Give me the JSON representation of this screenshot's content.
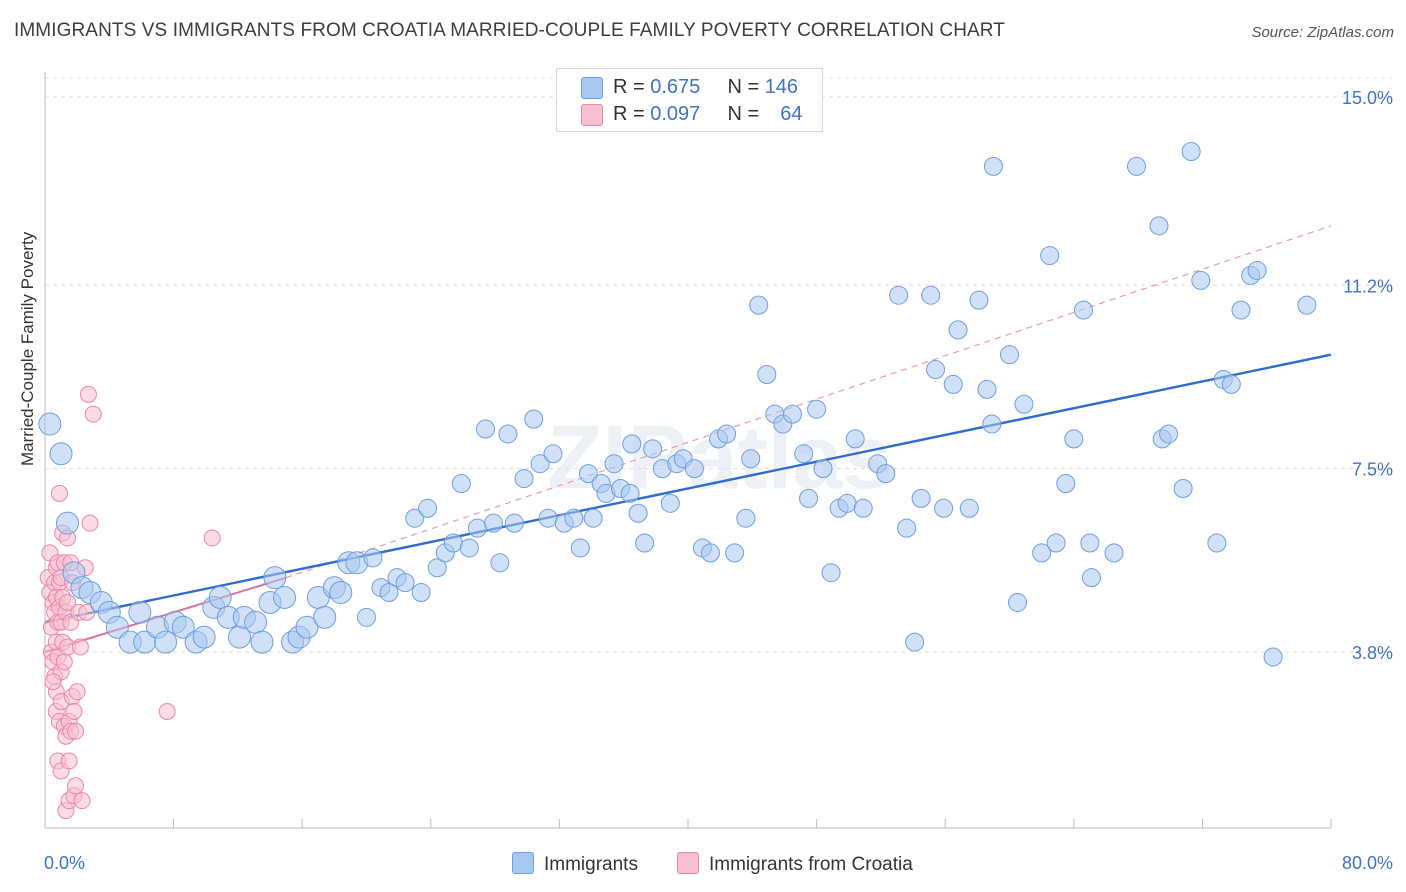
{
  "title": "IMMIGRANTS VS IMMIGRANTS FROM CROATIA MARRIED-COUPLE FAMILY POVERTY CORRELATION CHART",
  "source": "Source: ZipAtlas.com",
  "watermark": "ZIPatlas",
  "legend": {
    "rows": [
      {
        "r_label": "R =",
        "r_value": "0.675",
        "n_label": "N =",
        "n_value": "146",
        "color": "#a9c8f0",
        "border": "#6e9fe0"
      },
      {
        "r_label": "R =",
        "r_value": "0.097",
        "n_label": "N =",
        "n_value": "64",
        "color": "#f7bfd0",
        "border": "#ec86a6"
      }
    ]
  },
  "bottom_legend": [
    {
      "label": "Immigrants",
      "color": "#a9c8f0",
      "border": "#6e9fe0"
    },
    {
      "label": "Immigrants from Croatia",
      "color": "#f7bfd0",
      "border": "#ec86a6"
    }
  ],
  "chart_data": {
    "type": "scatter",
    "title": "IMMIGRANTS VS IMMIGRANTS FROM CROATIA MARRIED-COUPLE FAMILY POVERTY CORRELATION CHART",
    "xlabel": "",
    "ylabel": "Married-Couple Family Poverty",
    "xlim": [
      0,
      80
    ],
    "ylim": [
      0,
      15.5
    ],
    "x_tick_labels": [
      "0.0%",
      "80.0%"
    ],
    "y_ticks": [
      3.8,
      7.5,
      11.2,
      15.0
    ],
    "y_tick_labels": [
      "3.8%",
      "7.5%",
      "11.2%",
      "15.0%"
    ],
    "grid": true,
    "legend_position": "top-center",
    "series": [
      {
        "name": "Immigrants",
        "color": "#6e9fe0",
        "fill": "#a9c8f0",
        "trend": {
          "x": [
            0,
            80
          ],
          "y": [
            4.4,
            9.8
          ],
          "style": "solid",
          "color": "#2f6ccc"
        },
        "points": [
          [
            0.3,
            8.4
          ],
          [
            1.0,
            7.8
          ],
          [
            1.4,
            6.4
          ],
          [
            1.8,
            5.4
          ],
          [
            2.3,
            5.1
          ],
          [
            2.8,
            5.0
          ],
          [
            3.5,
            4.8
          ],
          [
            4.0,
            4.6
          ],
          [
            4.5,
            4.3
          ],
          [
            5.3,
            4.0
          ],
          [
            5.9,
            4.6
          ],
          [
            6.2,
            4.0
          ],
          [
            7.0,
            4.3
          ],
          [
            7.5,
            4.0
          ],
          [
            8.1,
            4.4
          ],
          [
            8.6,
            4.3
          ],
          [
            9.4,
            4.0
          ],
          [
            9.9,
            4.1
          ],
          [
            10.5,
            4.7
          ],
          [
            10.9,
            4.9
          ],
          [
            11.4,
            4.5
          ],
          [
            12.1,
            4.1
          ],
          [
            12.4,
            4.5
          ],
          [
            13.1,
            4.4
          ],
          [
            13.5,
            4.0
          ],
          [
            14.0,
            4.8
          ],
          [
            14.3,
            5.3
          ],
          [
            14.9,
            4.9
          ],
          [
            15.4,
            4.0
          ],
          [
            15.8,
            4.1
          ],
          [
            16.3,
            4.3
          ],
          [
            17.0,
            4.9
          ],
          [
            17.4,
            4.5
          ],
          [
            18.0,
            5.1
          ],
          [
            18.4,
            5.0
          ],
          [
            18.9,
            5.6
          ],
          [
            19.4,
            5.6
          ],
          [
            20.0,
            4.5
          ],
          [
            20.4,
            5.7
          ],
          [
            20.9,
            5.1
          ],
          [
            21.4,
            5.0
          ],
          [
            21.9,
            5.3
          ],
          [
            22.4,
            5.2
          ],
          [
            23.0,
            6.5
          ],
          [
            23.4,
            5.0
          ],
          [
            23.8,
            6.7
          ],
          [
            24.4,
            5.5
          ],
          [
            24.9,
            5.8
          ],
          [
            25.4,
            6.0
          ],
          [
            25.9,
            7.2
          ],
          [
            26.4,
            5.9
          ],
          [
            26.9,
            6.3
          ],
          [
            27.4,
            8.3
          ],
          [
            27.9,
            6.4
          ],
          [
            28.3,
            5.6
          ],
          [
            28.8,
            8.2
          ],
          [
            29.2,
            6.4
          ],
          [
            29.8,
            7.3
          ],
          [
            30.4,
            8.5
          ],
          [
            30.8,
            7.6
          ],
          [
            31.3,
            6.5
          ],
          [
            31.6,
            7.8
          ],
          [
            32.3,
            6.4
          ],
          [
            32.9,
            6.5
          ],
          [
            33.3,
            5.9
          ],
          [
            33.8,
            7.4
          ],
          [
            34.1,
            6.5
          ],
          [
            34.6,
            7.2
          ],
          [
            34.9,
            7.0
          ],
          [
            35.4,
            7.6
          ],
          [
            35.8,
            7.1
          ],
          [
            36.4,
            7.0
          ],
          [
            36.9,
            6.6
          ],
          [
            36.5,
            8.0
          ],
          [
            37.3,
            6.0
          ],
          [
            37.8,
            7.9
          ],
          [
            38.4,
            7.5
          ],
          [
            38.9,
            6.8
          ],
          [
            39.3,
            7.6
          ],
          [
            39.7,
            7.7
          ],
          [
            40.4,
            7.5
          ],
          [
            40.9,
            5.9
          ],
          [
            41.4,
            5.8
          ],
          [
            41.9,
            8.1
          ],
          [
            42.4,
            8.2
          ],
          [
            42.9,
            5.8
          ],
          [
            43.6,
            6.5
          ],
          [
            43.9,
            7.7
          ],
          [
            44.4,
            10.8
          ],
          [
            44.9,
            9.4
          ],
          [
            45.4,
            8.6
          ],
          [
            45.9,
            8.4
          ],
          [
            46.5,
            8.6
          ],
          [
            47.2,
            7.8
          ],
          [
            47.5,
            6.9
          ],
          [
            48.0,
            8.7
          ],
          [
            48.4,
            7.5
          ],
          [
            48.9,
            5.4
          ],
          [
            49.4,
            6.7
          ],
          [
            49.9,
            6.8
          ],
          [
            50.4,
            8.1
          ],
          [
            50.9,
            6.7
          ],
          [
            51.8,
            7.6
          ],
          [
            52.3,
            7.4
          ],
          [
            53.1,
            11.0
          ],
          [
            53.6,
            6.3
          ],
          [
            54.1,
            4.0
          ],
          [
            54.5,
            6.9
          ],
          [
            55.1,
            11.0
          ],
          [
            55.4,
            9.5
          ],
          [
            55.9,
            6.7
          ],
          [
            56.5,
            9.2
          ],
          [
            56.8,
            10.3
          ],
          [
            57.5,
            6.7
          ],
          [
            58.1,
            10.9
          ],
          [
            58.6,
            9.1
          ],
          [
            58.9,
            8.4
          ],
          [
            59.0,
            13.6
          ],
          [
            60.0,
            9.8
          ],
          [
            60.5,
            4.8
          ],
          [
            60.9,
            8.8
          ],
          [
            62.0,
            5.8
          ],
          [
            62.5,
            11.8
          ],
          [
            62.9,
            6.0
          ],
          [
            63.5,
            7.2
          ],
          [
            64.0,
            8.1
          ],
          [
            64.6,
            10.7
          ],
          [
            65.0,
            6.0
          ],
          [
            65.1,
            5.3
          ],
          [
            66.5,
            5.8
          ],
          [
            67.9,
            13.6
          ],
          [
            69.3,
            12.4
          ],
          [
            69.5,
            8.1
          ],
          [
            69.9,
            8.2
          ],
          [
            70.8,
            7.1
          ],
          [
            71.3,
            13.9
          ],
          [
            71.9,
            11.3
          ],
          [
            72.9,
            6.0
          ],
          [
            73.3,
            9.3
          ],
          [
            73.8,
            9.2
          ],
          [
            74.4,
            10.7
          ],
          [
            75.0,
            11.4
          ],
          [
            75.4,
            11.5
          ],
          [
            76.4,
            3.7
          ],
          [
            78.5,
            10.8
          ]
        ]
      },
      {
        "name": "Immigrants from Croatia",
        "color": "#ec86a6",
        "fill": "#f7bfd0",
        "trend": {
          "x": [
            0,
            15
          ],
          "y": [
            3.8,
            5.3
          ],
          "style": "solid",
          "color": "#e0709a"
        },
        "trend_dashed": {
          "x": [
            15,
            80
          ],
          "y": [
            5.3,
            12.4
          ],
          "style": "dashed",
          "color": "#e89ab5"
        },
        "points": [
          [
            0.2,
            5.3
          ],
          [
            0.3,
            5.8
          ],
          [
            0.3,
            5.0
          ],
          [
            0.4,
            4.3
          ],
          [
            0.4,
            3.8
          ],
          [
            0.5,
            4.8
          ],
          [
            0.5,
            3.6
          ],
          [
            0.6,
            5.2
          ],
          [
            0.6,
            4.6
          ],
          [
            0.6,
            3.3
          ],
          [
            0.7,
            5.5
          ],
          [
            0.7,
            4.9
          ],
          [
            0.7,
            4.0
          ],
          [
            0.7,
            3.0
          ],
          [
            0.7,
            2.6
          ],
          [
            0.8,
            5.6
          ],
          [
            0.8,
            4.4
          ],
          [
            0.8,
            3.7
          ],
          [
            0.8,
            1.6
          ],
          [
            0.9,
            7.0
          ],
          [
            0.9,
            5.2
          ],
          [
            0.9,
            4.7
          ],
          [
            0.9,
            2.4
          ],
          [
            1.0,
            5.3
          ],
          [
            1.0,
            4.4
          ],
          [
            1.0,
            3.4
          ],
          [
            1.0,
            2.8
          ],
          [
            1.0,
            1.4
          ],
          [
            1.1,
            6.2
          ],
          [
            1.1,
            4.9
          ],
          [
            1.1,
            4.0
          ],
          [
            1.2,
            5.6
          ],
          [
            1.2,
            3.6
          ],
          [
            1.2,
            2.3
          ],
          [
            1.3,
            4.6
          ],
          [
            1.3,
            2.1
          ],
          [
            1.3,
            0.6
          ],
          [
            1.4,
            6.1
          ],
          [
            1.4,
            4.8
          ],
          [
            1.4,
            3.9
          ],
          [
            1.5,
            2.4
          ],
          [
            1.5,
            1.6
          ],
          [
            1.5,
            0.8
          ],
          [
            1.6,
            5.6
          ],
          [
            1.6,
            4.4
          ],
          [
            1.6,
            2.2
          ],
          [
            1.7,
            5.2
          ],
          [
            1.7,
            2.9
          ],
          [
            1.8,
            2.6
          ],
          [
            1.8,
            0.9
          ],
          [
            1.9,
            2.2
          ],
          [
            1.9,
            1.1
          ],
          [
            2.0,
            3.0
          ],
          [
            2.1,
            4.6
          ],
          [
            2.2,
            3.9
          ],
          [
            2.3,
            0.8
          ],
          [
            2.5,
            5.5
          ],
          [
            2.6,
            4.6
          ],
          [
            2.7,
            9.0
          ],
          [
            2.8,
            6.4
          ],
          [
            3.0,
            8.6
          ],
          [
            7.6,
            2.6
          ],
          [
            10.4,
            6.1
          ],
          [
            0.5,
            3.2
          ]
        ]
      }
    ]
  }
}
